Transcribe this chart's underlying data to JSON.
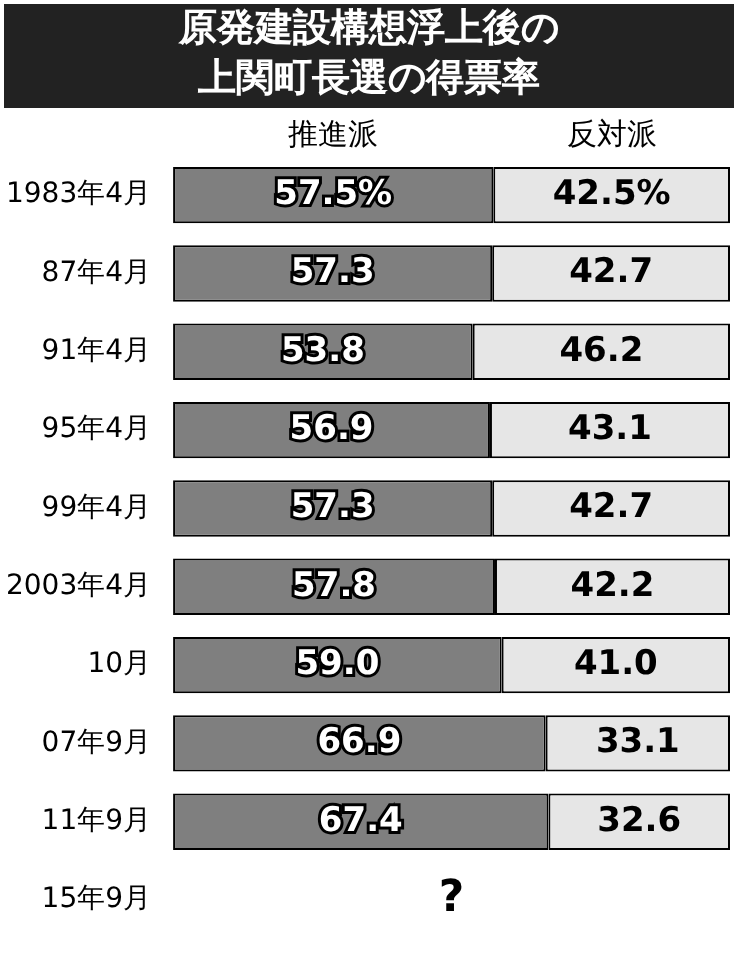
{
  "chart_data": {
    "type": "bar",
    "title": "原発建設構想浮上後の上関町長選の得票率",
    "orientation": "horizontal",
    "stacked": true,
    "tick_labels": "y",
    "legend": "top",
    "categories": [
      "1983年4月",
      "87年4月",
      "91年4月",
      "95年4月",
      "99年4月",
      "2003年4月",
      "10月",
      "07年9月",
      "11年9月",
      "15年9月"
    ],
    "series": [
      {
        "name": "推進派",
        "color": "#7f7f7f",
        "values": [
          57.5,
          57.3,
          53.8,
          56.9,
          57.3,
          57.8,
          59.0,
          66.9,
          67.4,
          null
        ],
        "value_labels": [
          "57.5%",
          "57.3",
          "53.8",
          "56.9",
          "57.3",
          "57.8",
          "59.0",
          "66.9",
          "67.4",
          null
        ]
      },
      {
        "name": "反対派",
        "color": "#e6e6e6",
        "values": [
          42.5,
          42.7,
          46.2,
          43.1,
          42.7,
          42.2,
          41.0,
          33.1,
          32.6,
          null
        ],
        "value_labels": [
          "42.5%",
          "42.7",
          "46.2",
          "43.1",
          "42.7",
          "42.2",
          "41.0",
          "33.1",
          "32.6",
          null
        ]
      }
    ],
    "annotations": [
      "?"
    ]
  }
}
